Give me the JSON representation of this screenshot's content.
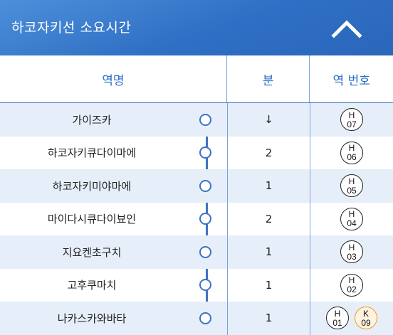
{
  "header": {
    "title": "하코자키선 소요시간",
    "collapse_icon": "chevron-up-icon"
  },
  "columns": {
    "station": "역명",
    "minutes": "분",
    "station_number": "역 번호"
  },
  "colors": {
    "header_bg": "#2f6fc4",
    "route_line": "#3f72c2",
    "shade_row": "#e6eef9",
    "badge_k": "#f39a1e"
  },
  "rows": [
    {
      "station": "가이즈카",
      "minutes": "↓",
      "codes": [
        {
          "line": "H",
          "num": "07"
        }
      ]
    },
    {
      "station": "하코자키큐다이마에",
      "minutes": "2",
      "codes": [
        {
          "line": "H",
          "num": "06"
        }
      ]
    },
    {
      "station": "하코자키미야마에",
      "minutes": "1",
      "codes": [
        {
          "line": "H",
          "num": "05"
        }
      ]
    },
    {
      "station": "마이다시큐다이뵤인",
      "minutes": "2",
      "codes": [
        {
          "line": "H",
          "num": "04"
        }
      ]
    },
    {
      "station": "지요켄초구치",
      "minutes": "1",
      "codes": [
        {
          "line": "H",
          "num": "03"
        }
      ]
    },
    {
      "station": "고후쿠마치",
      "minutes": "1",
      "codes": [
        {
          "line": "H",
          "num": "02"
        }
      ]
    },
    {
      "station": "나카스카와바타",
      "minutes": "1",
      "codes": [
        {
          "line": "H",
          "num": "01"
        },
        {
          "line": "K",
          "num": "09"
        }
      ]
    }
  ]
}
